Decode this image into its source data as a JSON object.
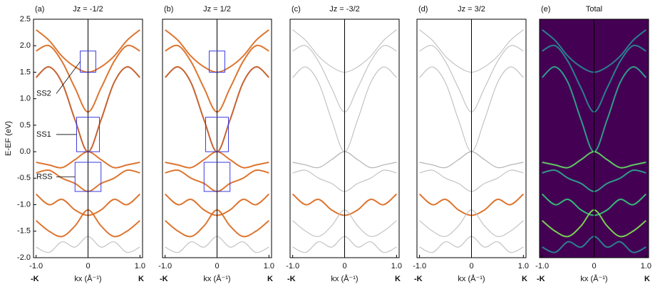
{
  "chart_data": [
    {
      "type": "line",
      "label": "(a)",
      "title": "Jz = -1/2",
      "ylabel": "E-EF (eV)",
      "xlabel": "kx (Å⁻¹)",
      "xends": [
        "-K",
        "K"
      ],
      "xlim": [
        -1.05,
        1.05
      ],
      "ylim": [
        -2.0,
        2.5
      ],
      "xticks": [
        {
          "value": -1,
          "label": "-1.0"
        },
        0,
        {
          "value": 1,
          "label": "1.0"
        }
      ],
      "yticks": [
        {
          "value": -2,
          "label": "-2.0"
        },
        -1.5,
        {
          "value": -1,
          "label": "-1.0"
        },
        -0.5,
        {
          "value": 0,
          "label": "0.0"
        },
        0.5,
        {
          "value": 1,
          "label": "1.0"
        },
        1.5,
        {
          "value": 2,
          "label": "2.0"
        },
        2.5
      ],
      "vline": 0,
      "background": "#ffffff",
      "regions": [
        {
          "label": "SS2",
          "xlim": [
            -0.15,
            0.15
          ],
          "ylim": [
            1.5,
            1.9
          ]
        },
        {
          "label": "SS1",
          "xlim": [
            -0.22,
            0.22
          ],
          "ylim": [
            0,
            0.65
          ]
        },
        {
          "label": "RSS",
          "xlim": [
            -0.25,
            0.25
          ],
          "ylim": [
            -0.75,
            -0.2
          ]
        }
      ],
      "x": [
        -1,
        -0.75,
        -0.5,
        -0.25,
        0,
        0.25,
        0.5,
        0.75,
        1
      ],
      "series": [
        {
          "color": "#d9661a",
          "values": [
            2.3,
            2.1,
            1.8,
            1.6,
            1.5,
            1.6,
            1.8,
            2.1,
            2.3
          ]
        },
        {
          "color": "#d9661a",
          "values": [
            1.9,
            2.0,
            1.7,
            1.2,
            0.75,
            1.2,
            1.7,
            2.0,
            1.9
          ]
        },
        {
          "color": "#c0501a",
          "values": [
            1.4,
            1.6,
            1.3,
            0.6,
            0.0,
            0.6,
            1.3,
            1.6,
            1.4
          ]
        },
        {
          "color": "#d9661a",
          "values": [
            -0.2,
            -0.25,
            -0.3,
            -0.15,
            0.0,
            -0.15,
            -0.3,
            -0.25,
            -0.2
          ]
        },
        {
          "color": "#d9661a",
          "values": [
            -0.4,
            -0.35,
            -0.5,
            -0.6,
            -0.75,
            -0.6,
            -0.5,
            -0.35,
            -0.4
          ]
        },
        {
          "color": "#d9661a",
          "values": [
            -0.8,
            -1.0,
            -0.9,
            -1.1,
            -1.2,
            -1.1,
            -0.9,
            -1.0,
            -0.8
          ]
        },
        {
          "color": "#d9661a",
          "values": [
            -1.3,
            -1.5,
            -1.6,
            -1.4,
            -1.1,
            -1.4,
            -1.6,
            -1.5,
            -1.3
          ]
        },
        {
          "color": "#bdbdbd",
          "values": [
            -1.8,
            -1.9,
            -1.7,
            -1.8,
            -1.6,
            -1.8,
            -1.7,
            -1.9,
            -1.8
          ]
        }
      ]
    },
    {
      "type": "line",
      "label": "(b)",
      "title": "Jz = 1/2",
      "xlabel": "kx (Å⁻¹)",
      "xends": [
        "-K",
        "K"
      ],
      "xlim": [
        -1.05,
        1.05
      ],
      "ylim": [
        -2.0,
        2.5
      ],
      "xticks": [
        {
          "value": -1,
          "label": "-1.0"
        },
        0,
        {
          "value": 1,
          "label": "1.0"
        }
      ],
      "vline": 0,
      "background": "#ffffff",
      "regions": [
        {
          "xlim": [
            -0.15,
            0.15
          ],
          "ylim": [
            1.5,
            1.9
          ]
        },
        {
          "xlim": [
            -0.22,
            0.22
          ],
          "ylim": [
            0,
            0.65
          ]
        },
        {
          "xlim": [
            -0.25,
            0.25
          ],
          "ylim": [
            -0.75,
            -0.2
          ]
        }
      ],
      "x": [
        -1,
        -0.75,
        -0.5,
        -0.25,
        0,
        0.25,
        0.5,
        0.75,
        1
      ],
      "series": [
        {
          "color": "#d9661a",
          "values": [
            2.3,
            2.1,
            1.8,
            1.6,
            1.5,
            1.6,
            1.8,
            2.1,
            2.3
          ]
        },
        {
          "color": "#d9661a",
          "values": [
            1.9,
            2.0,
            1.7,
            1.2,
            0.75,
            1.2,
            1.7,
            2.0,
            1.9
          ]
        },
        {
          "color": "#c0501a",
          "values": [
            1.4,
            1.6,
            1.3,
            0.6,
            0.0,
            0.6,
            1.3,
            1.6,
            1.4
          ]
        },
        {
          "color": "#d9661a",
          "values": [
            -0.2,
            -0.25,
            -0.3,
            -0.15,
            0.0,
            -0.15,
            -0.3,
            -0.25,
            -0.2
          ]
        },
        {
          "color": "#d9661a",
          "values": [
            -0.4,
            -0.35,
            -0.5,
            -0.6,
            -0.75,
            -0.6,
            -0.5,
            -0.35,
            -0.4
          ]
        },
        {
          "color": "#d9661a",
          "values": [
            -0.8,
            -1.0,
            -0.9,
            -1.1,
            -1.2,
            -1.1,
            -0.9,
            -1.0,
            -0.8
          ]
        },
        {
          "color": "#d9661a",
          "values": [
            -1.3,
            -1.5,
            -1.6,
            -1.4,
            -1.1,
            -1.4,
            -1.6,
            -1.5,
            -1.3
          ]
        },
        {
          "color": "#bdbdbd",
          "values": [
            -1.8,
            -1.9,
            -1.7,
            -1.8,
            -1.6,
            -1.8,
            -1.7,
            -1.9,
            -1.8
          ]
        }
      ]
    },
    {
      "type": "line",
      "label": "(c)",
      "title": "Jz = -3/2",
      "xlabel": "kx (Å⁻¹)",
      "xends": [
        "-K",
        "K"
      ],
      "xlim": [
        -1.05,
        1.05
      ],
      "ylim": [
        -2.0,
        2.5
      ],
      "xticks": [
        {
          "value": -1,
          "label": "-1.0"
        },
        0,
        {
          "value": 1,
          "label": "1.0"
        }
      ],
      "vline": 0,
      "background": "#ffffff",
      "x": [
        -1,
        -0.75,
        -0.5,
        -0.25,
        0,
        0.25,
        0.5,
        0.75,
        1
      ],
      "series": [
        {
          "color": "#bdbdbd",
          "values": [
            2.3,
            2.1,
            1.8,
            1.6,
            1.5,
            1.6,
            1.8,
            2.1,
            2.3
          ]
        },
        {
          "color": "#bdbdbd",
          "values": [
            1.9,
            2.0,
            1.7,
            1.2,
            0.75,
            1.2,
            1.7,
            2.0,
            1.9
          ]
        },
        {
          "color": "#bdbdbd",
          "values": [
            1.4,
            1.6,
            1.3,
            0.6,
            0.0,
            0.6,
            1.3,
            1.6,
            1.4
          ]
        },
        {
          "color": "#a8a8a8",
          "values": [
            -0.2,
            -0.25,
            -0.3,
            -0.15,
            0.0,
            -0.15,
            -0.3,
            -0.25,
            -0.2
          ]
        },
        {
          "color": "#bdbdbd",
          "values": [
            -0.4,
            -0.35,
            -0.5,
            -0.6,
            -0.75,
            -0.6,
            -0.5,
            -0.35,
            -0.4
          ]
        },
        {
          "color": "#d9661a",
          "values": [
            -0.8,
            -1.0,
            -0.9,
            -1.1,
            -1.2,
            -1.1,
            -0.9,
            -1.0,
            -0.8
          ]
        },
        {
          "color": "#bdbdbd",
          "values": [
            -1.3,
            -1.5,
            -1.6,
            -1.4,
            -1.1,
            -1.4,
            -1.6,
            -1.5,
            -1.3
          ]
        },
        {
          "color": "#bdbdbd",
          "values": [
            -1.8,
            -1.9,
            -1.7,
            -1.8,
            -1.6,
            -1.8,
            -1.7,
            -1.9,
            -1.8
          ]
        }
      ]
    },
    {
      "type": "line",
      "label": "(d)",
      "title": "Jz = 3/2",
      "xlabel": "kx (Å⁻¹)",
      "xends": [
        "-K",
        "K"
      ],
      "xlim": [
        -1.05,
        1.05
      ],
      "ylim": [
        -2.0,
        2.5
      ],
      "xticks": [
        {
          "value": -1,
          "label": "-1.0"
        },
        0,
        {
          "value": 1,
          "label": "1.0"
        }
      ],
      "vline": 0,
      "background": "#ffffff",
      "x": [
        -1,
        -0.75,
        -0.5,
        -0.25,
        0,
        0.25,
        0.5,
        0.75,
        1
      ],
      "series": [
        {
          "color": "#bdbdbd",
          "values": [
            2.3,
            2.1,
            1.8,
            1.6,
            1.5,
            1.6,
            1.8,
            2.1,
            2.3
          ]
        },
        {
          "color": "#bdbdbd",
          "values": [
            1.9,
            2.0,
            1.7,
            1.2,
            0.75,
            1.2,
            1.7,
            2.0,
            1.9
          ]
        },
        {
          "color": "#bdbdbd",
          "values": [
            1.4,
            1.6,
            1.3,
            0.6,
            0.0,
            0.6,
            1.3,
            1.6,
            1.4
          ]
        },
        {
          "color": "#a8a8a8",
          "values": [
            -0.2,
            -0.25,
            -0.3,
            -0.15,
            0.0,
            -0.15,
            -0.3,
            -0.25,
            -0.2
          ]
        },
        {
          "color": "#bdbdbd",
          "values": [
            -0.4,
            -0.35,
            -0.5,
            -0.6,
            -0.75,
            -0.6,
            -0.5,
            -0.35,
            -0.4
          ]
        },
        {
          "color": "#d9661a",
          "values": [
            -0.8,
            -1.0,
            -0.9,
            -1.1,
            -1.2,
            -1.1,
            -0.9,
            -1.0,
            -0.8
          ]
        },
        {
          "color": "#bdbdbd",
          "values": [
            -1.3,
            -1.5,
            -1.6,
            -1.4,
            -1.1,
            -1.4,
            -1.6,
            -1.5,
            -1.3
          ]
        },
        {
          "color": "#bdbdbd",
          "values": [
            -1.8,
            -1.9,
            -1.7,
            -1.8,
            -1.6,
            -1.8,
            -1.7,
            -1.9,
            -1.8
          ]
        }
      ]
    },
    {
      "type": "line",
      "label": "(e)",
      "title": "Total",
      "xlabel": "kx (Å⁻¹)",
      "xends": [
        "-K",
        "K"
      ],
      "xlim": [
        -1.05,
        1.05
      ],
      "ylim": [
        -2.0,
        2.5
      ],
      "xticks": [
        {
          "value": -1,
          "label": "-1.0"
        },
        0,
        {
          "value": 1,
          "label": "1.0"
        }
      ],
      "vline": 0,
      "background": "#440154",
      "x": [
        -1,
        -0.75,
        -0.5,
        -0.25,
        0,
        0.25,
        0.5,
        0.75,
        1
      ],
      "series": [
        {
          "color": "#2a7f8e",
          "values": [
            2.3,
            2.1,
            1.8,
            1.6,
            1.5,
            1.6,
            1.8,
            2.1,
            2.3
          ]
        },
        {
          "color": "#2a7f8e",
          "values": [
            1.9,
            2.0,
            1.7,
            1.2,
            0.75,
            1.2,
            1.7,
            2.0,
            1.9
          ]
        },
        {
          "color": "#2f9c8a",
          "values": [
            1.4,
            1.6,
            1.3,
            0.6,
            0.0,
            0.6,
            1.3,
            1.6,
            1.4
          ]
        },
        {
          "color": "#5ec962",
          "values": [
            -0.2,
            -0.25,
            -0.3,
            -0.15,
            0.0,
            -0.15,
            -0.3,
            -0.25,
            -0.2
          ]
        },
        {
          "color": "#2f9c8a",
          "values": [
            -0.4,
            -0.35,
            -0.5,
            -0.6,
            -0.75,
            -0.6,
            -0.5,
            -0.35,
            -0.4
          ]
        },
        {
          "color": "#35b779",
          "values": [
            -0.8,
            -1.0,
            -0.9,
            -1.1,
            -1.2,
            -1.1,
            -0.9,
            -1.0,
            -0.8
          ]
        },
        {
          "color": "#7ad151",
          "values": [
            -1.3,
            -1.5,
            -1.6,
            -1.4,
            -1.1,
            -1.4,
            -1.6,
            -1.5,
            -1.3
          ]
        },
        {
          "color": "#2a7f8e",
          "values": [
            -1.8,
            -1.9,
            -1.7,
            -1.8,
            -1.6,
            -1.8,
            -1.7,
            -1.9,
            -1.8
          ]
        }
      ]
    }
  ]
}
